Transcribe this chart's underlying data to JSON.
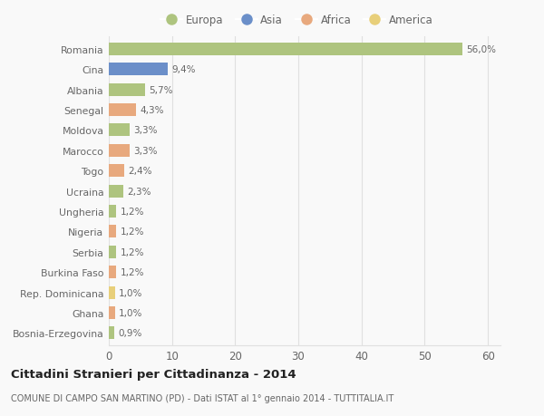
{
  "countries": [
    "Romania",
    "Cina",
    "Albania",
    "Senegal",
    "Moldova",
    "Marocco",
    "Togo",
    "Ucraina",
    "Ungheria",
    "Nigeria",
    "Serbia",
    "Burkina Faso",
    "Rep. Dominicana",
    "Ghana",
    "Bosnia-Erzegovina"
  ],
  "values": [
    56.0,
    9.4,
    5.7,
    4.3,
    3.3,
    3.3,
    2.4,
    2.3,
    1.2,
    1.2,
    1.2,
    1.2,
    1.0,
    1.0,
    0.9
  ],
  "labels": [
    "56,0%",
    "9,4%",
    "5,7%",
    "4,3%",
    "3,3%",
    "3,3%",
    "2,4%",
    "2,3%",
    "1,2%",
    "1,2%",
    "1,2%",
    "1,2%",
    "1,0%",
    "1,0%",
    "0,9%"
  ],
  "continents": [
    "Europa",
    "Asia",
    "Europa",
    "Africa",
    "Europa",
    "Africa",
    "Africa",
    "Europa",
    "Europa",
    "Africa",
    "Europa",
    "Africa",
    "America",
    "Africa",
    "Europa"
  ],
  "continent_colors": {
    "Europa": "#aec47f",
    "Asia": "#6b8fc9",
    "Africa": "#e8a97e",
    "America": "#e8cf7a"
  },
  "legend_order": [
    "Europa",
    "Asia",
    "Africa",
    "America"
  ],
  "title": "Cittadini Stranieri per Cittadinanza - 2014",
  "subtitle": "COMUNE DI CAMPO SAN MARTINO (PD) - Dati ISTAT al 1° gennaio 2014 - TUTTITALIA.IT",
  "xlim": [
    0,
    62
  ],
  "xticks": [
    0,
    10,
    20,
    30,
    40,
    50,
    60
  ],
  "background_color": "#f9f9f9",
  "grid_color": "#e0e0e0",
  "text_color": "#666666",
  "title_color": "#222222",
  "subtitle_color": "#666666"
}
